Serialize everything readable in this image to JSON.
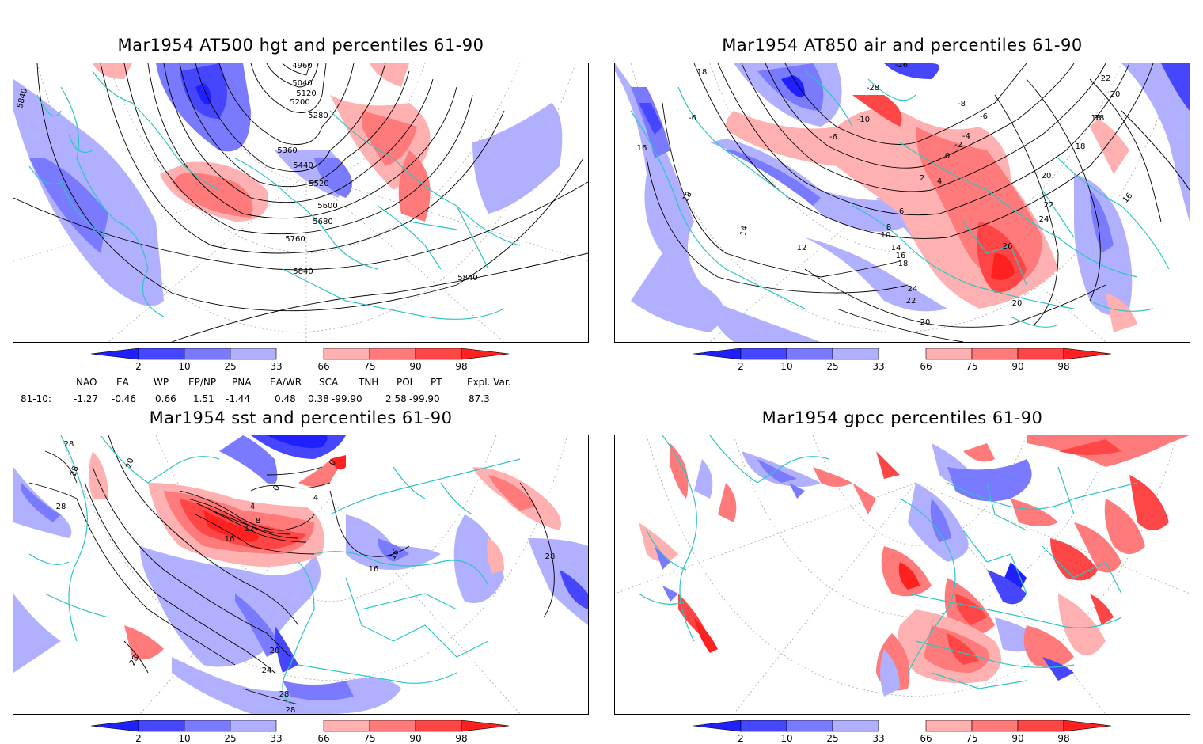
{
  "panels": [
    {
      "id": "tl",
      "title": "Mar1954 AT500 hgt and percentiles 61-90"
    },
    {
      "id": "tr",
      "title": "Mar1954 AT850 air and percentiles 61-90"
    },
    {
      "id": "bl",
      "title": "Mar1954 sst and percentiles 61-90"
    },
    {
      "id": "br",
      "title": "Mar1954 gpcc percentiles 61-90"
    }
  ],
  "colorbar": {
    "labels": [
      "2",
      "10",
      "25",
      "33",
      "66",
      "75",
      "90",
      "98"
    ],
    "colors": [
      "#2020ff",
      "#4646ff",
      "#7a7aff",
      "#b0b0ff",
      "#ffffff",
      "#ffb0b0",
      "#ff7a7a",
      "#ff4646",
      "#ff2020"
    ]
  },
  "indices": {
    "headers": [
      "NAO",
      "EA",
      "WP",
      "EP/NP",
      "PNA",
      "EA/WR",
      "SCA",
      "TNH",
      "POL",
      "PT",
      "Expl. Var."
    ],
    "row_label": "81-10:",
    "values": [
      "-1.27",
      "-0.46",
      "0.66",
      "1.51",
      "-1.44",
      "0.48",
      "0.38",
      "-99.90",
      "2.58",
      "-99.90",
      "87.3"
    ]
  },
  "contour_labels": {
    "tl": [
      "5840",
      "4960",
      "5040",
      "5120",
      "5200",
      "5280",
      "5360",
      "5440",
      "5520",
      "5600",
      "5680",
      "5760",
      "5840",
      "5840"
    ],
    "tr": [
      "18",
      "16",
      "-6",
      "-26",
      "-28",
      "-10",
      "-6",
      "-8",
      "-6",
      "-4",
      "-2",
      "0",
      "2",
      "4",
      "6",
      "8",
      "10",
      "12",
      "14",
      "16",
      "18",
      "14",
      "18",
      "24",
      "22",
      "20",
      "24",
      "26",
      "22",
      "20",
      "18",
      "20",
      "18",
      "16",
      "22",
      "20",
      "18"
    ],
    "bl": [
      "28",
      "20",
      "28",
      "28",
      "0",
      "0",
      "4",
      "4",
      "8",
      "12",
      "16",
      "16",
      "16",
      "28",
      "20",
      "24",
      "28",
      "28",
      "28"
    ]
  },
  "map_colors": {
    "coast": "#2ec4c4",
    "graticule": "#aaaaaa",
    "contour": "#000000"
  }
}
